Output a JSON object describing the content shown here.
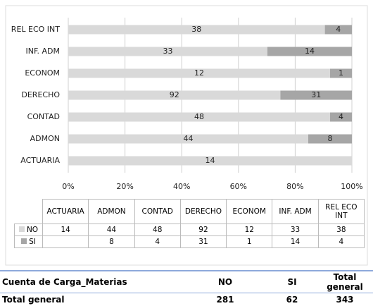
{
  "chart_data": {
    "type": "bar",
    "orientation": "horizontal",
    "stacked": "percent",
    "categories": [
      "ACTUARIA",
      "ADMON",
      "CONTAD",
      "DERECHO",
      "ECONOM",
      "INF. ADM",
      "REL ECO INT"
    ],
    "series": [
      {
        "name": "NO",
        "color": "#d9d9d9",
        "values": [
          14,
          44,
          48,
          92,
          12,
          33,
          38
        ]
      },
      {
        "name": "SI",
        "color": "#a6a6a6",
        "values": [
          null,
          8,
          4,
          31,
          1,
          14,
          4
        ]
      }
    ],
    "xlim": [
      0,
      100
    ],
    "xticks": [
      {
        "value": 0,
        "label": "0%"
      },
      {
        "value": 20,
        "label": "20%"
      },
      {
        "value": 40,
        "label": "40%"
      },
      {
        "value": 60,
        "label": "60%"
      },
      {
        "value": 80,
        "label": "80%"
      },
      {
        "value": 100,
        "label": "100%"
      }
    ],
    "grid": true,
    "data_table": true
  },
  "pivot": {
    "header": [
      "Cuenta de Carga_Materias",
      "NO",
      "SI",
      "Total general"
    ],
    "total_row": [
      "Total general",
      281,
      62,
      343
    ]
  }
}
